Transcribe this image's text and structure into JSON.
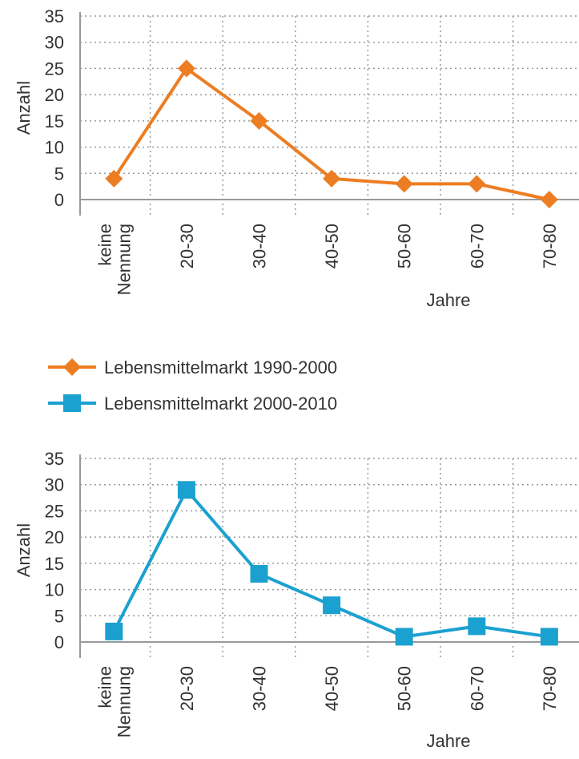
{
  "chart_data": [
    {
      "type": "line",
      "ylabel": "Anzahl",
      "xlabel": "Jahre",
      "categories": [
        "keine Nennung",
        "20-30",
        "30-40",
        "40-50",
        "50-60",
        "60-70",
        "70-80"
      ],
      "series": [
        {
          "name": "Lebensmittelmarkt 1990-2000",
          "color": "#ed7d22",
          "marker": "diamond",
          "values": [
            4,
            25,
            15,
            4,
            3,
            3,
            0
          ]
        }
      ],
      "ylim": [
        0,
        35
      ],
      "yticks": [
        0,
        5,
        10,
        15,
        20,
        25,
        30,
        35
      ],
      "grid": true
    },
    {
      "type": "line",
      "ylabel": "Anzahl",
      "xlabel": "Jahre",
      "categories": [
        "keine Nennung",
        "20-30",
        "30-40",
        "40-50",
        "50-60",
        "60-70",
        "70-80"
      ],
      "series": [
        {
          "name": "Lebensmittelmarkt 2000-2010",
          "color": "#1ba1d0",
          "marker": "square",
          "values": [
            2,
            29,
            13,
            7,
            1,
            3,
            1
          ]
        }
      ],
      "ylim": [
        0,
        35
      ],
      "yticks": [
        0,
        5,
        10,
        15,
        20,
        25,
        30,
        35
      ],
      "grid": true
    }
  ]
}
